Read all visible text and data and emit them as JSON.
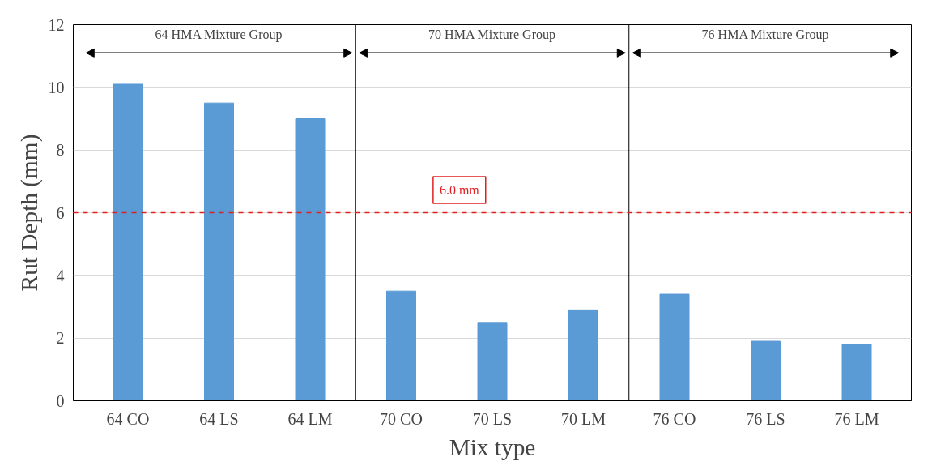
{
  "chart_data": {
    "type": "bar",
    "xlabel": "Mix type",
    "ylabel": "Rut Depth (mm)",
    "categories": [
      "64 CO",
      "64 LS",
      "64 LM",
      "70 CO",
      "70 LS",
      "70 LM",
      "76 CO",
      "76 LS",
      "76 LM"
    ],
    "values": [
      10.1,
      9.5,
      9.0,
      3.5,
      2.5,
      2.9,
      3.4,
      1.9,
      1.8
    ],
    "color": "#5b9bd5",
    "ylim": [
      0,
      12
    ],
    "yticks": [
      0,
      2,
      4,
      6,
      8,
      10,
      12
    ],
    "grid": "y",
    "ref_lines": [
      {
        "axis": "y",
        "value": 6.0,
        "label": "6.0 mm",
        "color": "#e02020",
        "line_style": "dashed"
      }
    ],
    "annotations": [
      "64 HMA Mixture Group",
      "70 HMA Mixture Group",
      "76 HMA Mixture Group"
    ]
  }
}
